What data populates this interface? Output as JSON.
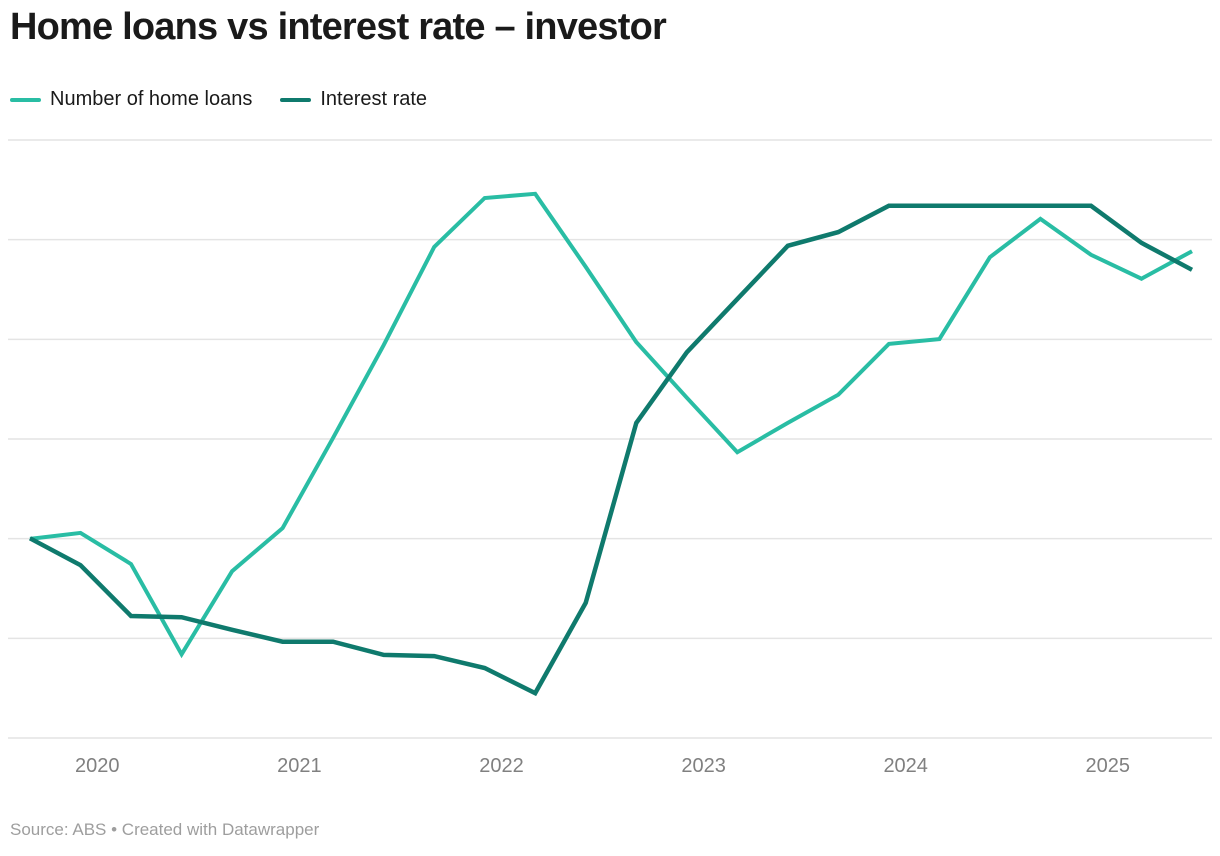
{
  "header": {
    "title": "Home loans vs interest rate – investor"
  },
  "legend": {
    "items": [
      {
        "label": "Number of home loans",
        "color": "#29bda4"
      },
      {
        "label": "Interest rate",
        "color": "#0f7a6d"
      }
    ]
  },
  "chart_data": {
    "type": "line",
    "title": "Home loans vs interest rate – investor",
    "xlabel": "",
    "ylabel": "",
    "x": [
      "2019 Q3",
      "2019 Q4",
      "2020 Q1",
      "2020 Q2",
      "2020 Q3",
      "2020 Q4",
      "2021 Q1",
      "2021 Q2",
      "2021 Q3",
      "2021 Q4",
      "2022 Q1",
      "2022 Q2",
      "2022 Q3",
      "2022 Q4",
      "2023 Q1",
      "2023 Q2",
      "2023 Q3",
      "2023 Q4",
      "2024 Q1",
      "2024 Q2",
      "2024 Q3",
      "2024 Q4",
      "2025 Q1",
      "2025 Q2"
    ],
    "series": [
      {
        "name": "Number of home loans",
        "color": "#29bda4",
        "values": [
          33.3,
          34.3,
          29.1,
          14.0,
          27.9,
          35.1,
          50.2,
          65.7,
          82.1,
          90.3,
          91.0,
          78.8,
          66.2,
          56.9,
          47.8,
          52.7,
          57.4,
          65.9,
          66.7,
          80.4,
          86.8,
          80.8,
          76.8,
          81.4
        ]
      },
      {
        "name": "Interest rate",
        "color": "#0f7a6d",
        "values": [
          33.4,
          28.9,
          20.4,
          20.2,
          18.1,
          16.1,
          16.1,
          13.9,
          13.7,
          11.7,
          7.5,
          22.6,
          52.7,
          64.5,
          73.4,
          82.3,
          84.6,
          89.0,
          89.0,
          89.0,
          89.0,
          89.0,
          82.8,
          78.3
        ]
      }
    ],
    "x_tick_labels": [
      "2020",
      "2021",
      "2022",
      "2023",
      "2024",
      "2025"
    ],
    "x_tick_positions": [
      1.333,
      5.333,
      9.333,
      13.333,
      17.333,
      21.333
    ],
    "ylim": [
      0,
      100
    ],
    "y_axis_note": "no y-axis value labels shown; values are relative position between bottom and top gridline (0–100)",
    "gridline_count": 7,
    "grid": true,
    "legend_position": "top-left"
  },
  "footer": {
    "source": "Source: ABS • Created with Datawrapper"
  },
  "colors": {
    "background": "#ffffff",
    "grid": "#e4e4e4",
    "axis_text": "#808080",
    "title_text": "#1a1a1a",
    "source_text": "#9e9e9e"
  }
}
